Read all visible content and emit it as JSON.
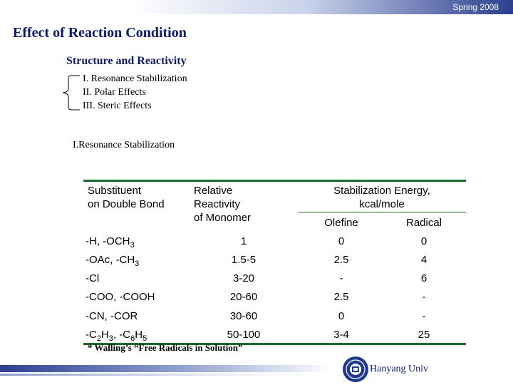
{
  "header": {
    "date": "Spring 2008"
  },
  "title": "Effect of Reaction Condition",
  "subtitle": "Structure and Reactivity",
  "factors": [
    "I. Resonance Stabilization",
    "II. Polar Effects",
    "III. Steric Effects"
  ],
  "section_title": "I.Resonance Stabilization",
  "table": {
    "headers": {
      "substituent": "Substituent on Double Bond",
      "substituent_line1": "Substituent",
      "substituent_line2": "on Double Bond",
      "reactivity_line1": "Relative",
      "reactivity_line2": "Reactivity",
      "reactivity_line3": "of Monomer",
      "energy_line1": "Stabilization Energy,",
      "energy_line2": "kcal/mole",
      "olefine": "Olefine",
      "radical": "Radical"
    },
    "rows": [
      {
        "sub_main": "-H, -OCH",
        "sub_tail": "3",
        "reactivity": "1",
        "olefine": "0",
        "radical": "0"
      },
      {
        "sub_main": "-OAc, -CH",
        "sub_tail": "3",
        "reactivity": "1.5-5",
        "olefine": "2.5",
        "radical": "4"
      },
      {
        "sub_main": "-Cl",
        "reactivity": "3-20",
        "olefine": "-",
        "radical": "6"
      },
      {
        "sub_main": "-COO, -COOH",
        "reactivity": "20-60",
        "olefine": "2.5",
        "radical": "-"
      },
      {
        "sub_main": "-CN, -COR",
        "reactivity": "30-60",
        "olefine": "0",
        "radical": "-"
      },
      {
        "sub_parts": [
          "-C",
          "2",
          "H",
          "3",
          ", -C",
          "6",
          "H",
          "5"
        ],
        "reactivity": "50-100",
        "olefine": "3-4",
        "radical": "25"
      }
    ]
  },
  "footnote": "* Walling’s “Free Radicals in Solution”",
  "footer": {
    "university": "Hanyang Univ"
  }
}
